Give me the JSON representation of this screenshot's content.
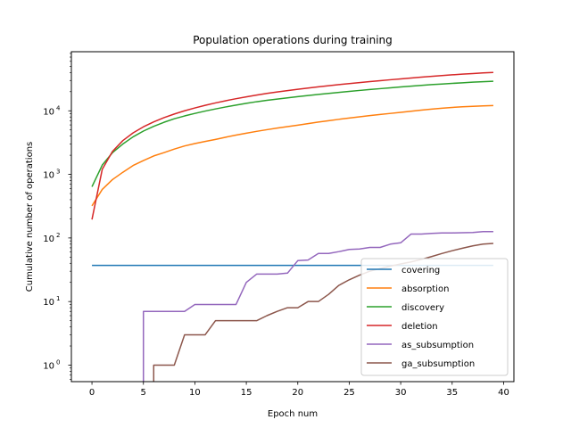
{
  "chart_data": {
    "type": "line",
    "title": "Population operations during training",
    "xlabel": "Epoch num",
    "ylabel": "Cumulative number of operations",
    "yscale": "log",
    "xlim": [
      -2,
      41
    ],
    "ylim": [
      0.55,
      85000
    ],
    "x_ticks": [
      0,
      5,
      10,
      15,
      20,
      25,
      30,
      35,
      40
    ],
    "x_tick_labels": [
      "0",
      "5",
      "10",
      "15",
      "20",
      "25",
      "30",
      "35",
      "40"
    ],
    "y_ticks": [
      1,
      10,
      100,
      1000,
      10000
    ],
    "y_tick_labels": [
      "10",
      "10",
      "10",
      "10",
      "10"
    ],
    "y_tick_exponents": [
      "0",
      "1",
      "2",
      "3",
      "4"
    ],
    "grid": false,
    "legend_position": "lower right",
    "x": [
      0,
      1,
      2,
      3,
      4,
      5,
      6,
      7,
      8,
      9,
      10,
      11,
      12,
      13,
      14,
      15,
      16,
      17,
      18,
      19,
      20,
      21,
      22,
      23,
      24,
      25,
      26,
      27,
      28,
      29,
      30,
      31,
      32,
      33,
      34,
      35,
      36,
      37,
      38,
      39
    ],
    "series": [
      {
        "name": "covering",
        "color": "#1f77b4",
        "values": [
          37,
          37,
          37,
          37,
          37,
          37,
          37,
          37,
          37,
          37,
          37,
          37,
          37,
          37,
          37,
          37,
          37,
          37,
          37,
          37,
          37,
          37,
          37,
          37,
          37,
          37,
          37,
          37,
          37,
          37,
          37,
          37,
          37,
          37,
          37,
          37,
          37,
          37,
          37,
          37
        ]
      },
      {
        "name": "absorption",
        "color": "#ff7f0e",
        "values": [
          320,
          580,
          830,
          1080,
          1380,
          1650,
          1950,
          2200,
          2500,
          2800,
          3050,
          3300,
          3550,
          3850,
          4150,
          4450,
          4750,
          5050,
          5350,
          5650,
          5950,
          6300,
          6650,
          7000,
          7350,
          7700,
          8050,
          8400,
          8750,
          9100,
          9450,
          9850,
          10250,
          10650,
          11000,
          11300,
          11550,
          11750,
          11950,
          12100
        ]
      },
      {
        "name": "discovery",
        "color": "#2ca02c",
        "values": [
          640,
          1400,
          2200,
          3000,
          3900,
          4800,
          5700,
          6600,
          7500,
          8300,
          9100,
          9900,
          10700,
          11500,
          12300,
          13100,
          13900,
          14600,
          15300,
          16000,
          16700,
          17400,
          18100,
          18800,
          19500,
          20200,
          20900,
          21600,
          22300,
          23000,
          23700,
          24400,
          25100,
          25800,
          26400,
          27000,
          27600,
          28200,
          28700,
          29200
        ]
      },
      {
        "name": "deletion",
        "color": "#d62728",
        "values": [
          195,
          1200,
          2300,
          3400,
          4500,
          5600,
          6700,
          7800,
          8900,
          10000,
          11100,
          12200,
          13300,
          14400,
          15500,
          16600,
          17700,
          18800,
          19800,
          20800,
          21800,
          22800,
          23800,
          24800,
          25800,
          26800,
          27800,
          28800,
          29800,
          30800,
          31800,
          32800,
          33800,
          34800,
          35800,
          36800,
          37800,
          38600,
          39400,
          40200
        ]
      },
      {
        "name": "as_subsumption",
        "color": "#9467bd",
        "values": [
          null,
          null,
          null,
          null,
          null,
          7,
          7,
          7,
          7,
          7,
          9,
          9,
          9,
          9,
          9,
          20,
          27,
          27,
          27,
          28,
          44,
          45,
          57,
          57,
          61,
          66,
          67,
          71,
          71,
          80,
          84,
          115,
          115,
          118,
          120,
          120,
          121,
          122,
          126,
          126
        ]
      },
      {
        "name": "ga_subsumption",
        "color": "#8c564b",
        "values": [
          null,
          null,
          null,
          null,
          null,
          null,
          1,
          1,
          1,
          3,
          3,
          3,
          5,
          5,
          5,
          5,
          5,
          6,
          7,
          8,
          8,
          10,
          10,
          13,
          18,
          22,
          26,
          30,
          33,
          36,
          39,
          42,
          46,
          51,
          57,
          63,
          69,
          75,
          80,
          82
        ]
      }
    ]
  }
}
